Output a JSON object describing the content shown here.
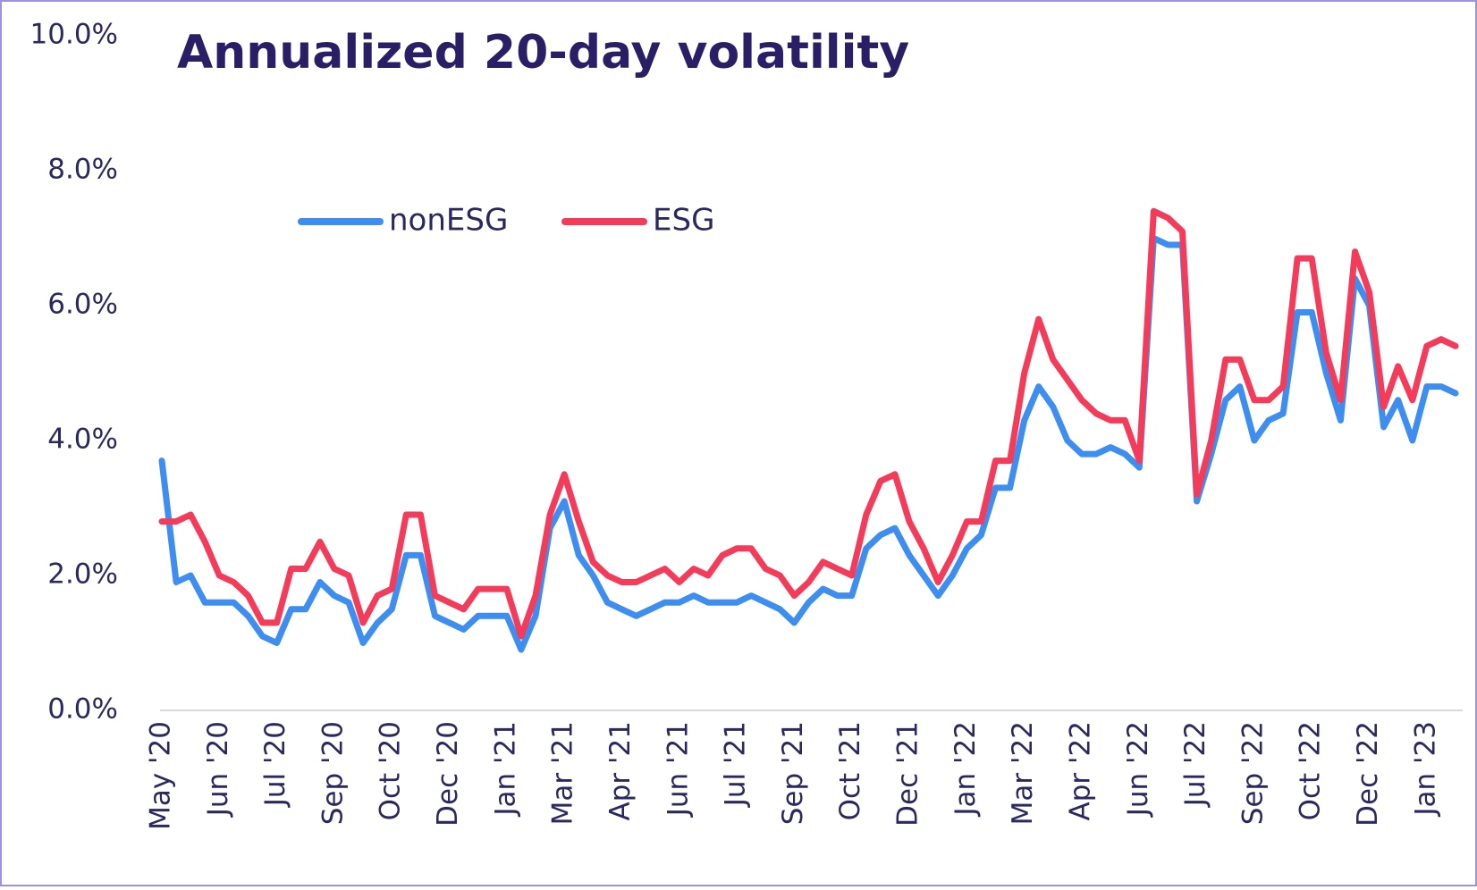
{
  "chart_data": {
    "type": "line",
    "title": "Annualized 20-day volatility",
    "categories": [
      "May '20",
      null,
      null,
      null,
      "Jun '20",
      null,
      null,
      null,
      "Jul '20",
      null,
      null,
      null,
      "Sep '20",
      null,
      null,
      null,
      "Oct '20",
      null,
      null,
      null,
      "Dec '20",
      null,
      null,
      null,
      "Jan '21",
      null,
      null,
      null,
      "Mar '21",
      null,
      null,
      null,
      "Apr '21",
      null,
      null,
      null,
      "Jun '21",
      null,
      null,
      null,
      "Jul '21",
      null,
      null,
      null,
      "Sep '21",
      null,
      null,
      null,
      "Oct '21",
      null,
      null,
      null,
      "Dec '21",
      null,
      null,
      null,
      "Jan '22",
      null,
      null,
      null,
      "Mar '22",
      null,
      null,
      null,
      "Apr '22",
      null,
      null,
      null,
      "Jun '22",
      null,
      null,
      null,
      "Jul '22",
      null,
      null,
      null,
      "Sep '22",
      null,
      null,
      null,
      "Oct '22",
      null,
      null,
      null,
      "Dec '22",
      null,
      null,
      null,
      "Jan '23",
      null,
      null
    ],
    "series": [
      {
        "name": "nonESG",
        "color": "#3d8ef0",
        "values": [
          3.7,
          1.9,
          2.0,
          1.6,
          1.6,
          1.6,
          1.4,
          1.1,
          1.0,
          1.5,
          1.5,
          1.9,
          1.7,
          1.6,
          1.0,
          1.3,
          1.5,
          2.3,
          2.3,
          1.4,
          1.3,
          1.2,
          1.4,
          1.4,
          1.4,
          0.9,
          1.4,
          2.7,
          3.1,
          2.3,
          2.0,
          1.6,
          1.5,
          1.4,
          1.5,
          1.6,
          1.6,
          1.7,
          1.6,
          1.6,
          1.6,
          1.7,
          1.6,
          1.5,
          1.3,
          1.6,
          1.8,
          1.7,
          1.7,
          2.4,
          2.6,
          2.7,
          2.3,
          2.0,
          1.7,
          2.0,
          2.4,
          2.6,
          3.3,
          3.3,
          4.3,
          4.8,
          4.5,
          4.0,
          3.8,
          3.8,
          3.9,
          3.8,
          3.6,
          7.0,
          6.9,
          6.9,
          3.1,
          3.8,
          4.6,
          4.8,
          4.0,
          4.3,
          4.4,
          5.9,
          5.9,
          5.0,
          4.3,
          6.4,
          6.0,
          4.2,
          4.6,
          4.0,
          4.8,
          4.8,
          4.7
        ]
      },
      {
        "name": "ESG",
        "color": "#f53b5a",
        "values": [
          2.8,
          2.8,
          2.9,
          2.5,
          2.0,
          1.9,
          1.7,
          1.3,
          1.3,
          2.1,
          2.1,
          2.5,
          2.1,
          2.0,
          1.3,
          1.7,
          1.8,
          2.9,
          2.9,
          1.7,
          1.6,
          1.5,
          1.8,
          1.8,
          1.8,
          1.1,
          1.7,
          2.9,
          3.5,
          2.8,
          2.2,
          2.0,
          1.9,
          1.9,
          2.0,
          2.1,
          1.9,
          2.1,
          2.0,
          2.3,
          2.4,
          2.4,
          2.1,
          2.0,
          1.7,
          1.9,
          2.2,
          2.1,
          2.0,
          2.9,
          3.4,
          3.5,
          2.8,
          2.4,
          1.9,
          2.3,
          2.8,
          2.8,
          3.7,
          3.7,
          5.0,
          5.8,
          5.2,
          4.9,
          4.6,
          4.4,
          4.3,
          4.3,
          3.7,
          7.4,
          7.3,
          7.1,
          3.2,
          4.0,
          5.2,
          5.2,
          4.6,
          4.6,
          4.8,
          6.7,
          6.7,
          5.3,
          4.6,
          6.8,
          6.2,
          4.5,
          5.1,
          4.6,
          5.4,
          5.5,
          5.4
        ]
      }
    ],
    "ylim": [
      0,
      10
    ],
    "yticks": [
      {
        "value": 0,
        "label": "0.0%"
      },
      {
        "value": 2,
        "label": "2.0%"
      },
      {
        "value": 4,
        "label": "4.0%"
      },
      {
        "value": 6,
        "label": "6.0%"
      },
      {
        "value": 8,
        "label": "8.0%"
      },
      {
        "value": 10,
        "label": "10.0%"
      }
    ],
    "grid": false
  }
}
